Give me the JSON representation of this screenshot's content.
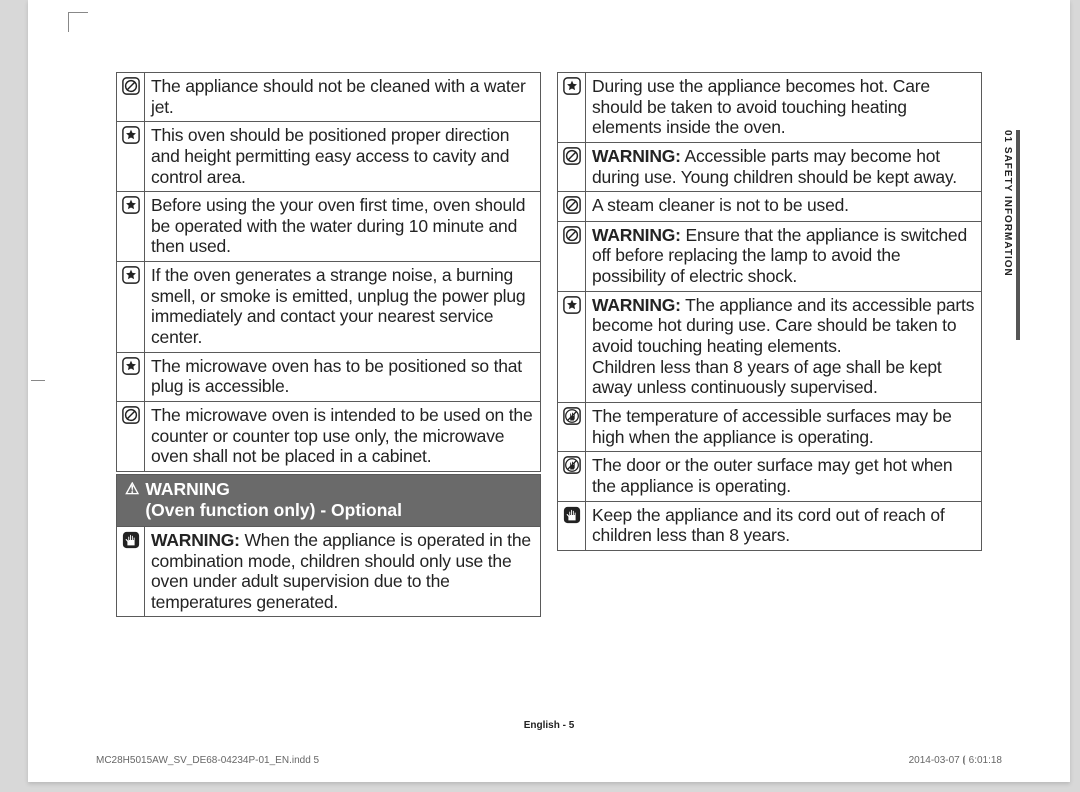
{
  "left_items": [
    {
      "icon": "prohibit",
      "text": "The appliance should not be cleaned with a water jet."
    },
    {
      "icon": "star",
      "text": "This oven should be positioned proper direction and height permitting easy access to cavity and control area."
    },
    {
      "icon": "star",
      "text": "Before using the your oven first time, oven should be operated with the water during 10 minute and then used."
    },
    {
      "icon": "star",
      "text": "If the oven generates a strange noise, a burning smell, or smoke is emitted, unplug the power plug immediately and contact your nearest service center."
    },
    {
      "icon": "star",
      "text": "The microwave oven has to be positioned so that plug is accessible."
    },
    {
      "icon": "prohibit",
      "text": "The microwave oven is intended to be used on the counter or counter top use only, the microwave oven shall not be placed in a cabinet."
    }
  ],
  "warning_header": {
    "line1": "WARNING",
    "line2": "(Oven function only) - Optional"
  },
  "warning_items": [
    {
      "icon": "hand",
      "bold": "WARNING:",
      "text": " When the appliance is operated in the combination mode, children should only use the oven under adult supervision due to the temperatures generated."
    }
  ],
  "right_items": [
    {
      "icon": "star",
      "text": "During use the appliance becomes hot. Care should be taken to avoid touching heating elements inside the oven."
    },
    {
      "icon": "prohibit",
      "bold": "WARNING:",
      "text": " Accessible parts may become hot during use. Young children should be kept away."
    },
    {
      "icon": "prohibit",
      "text": "A steam cleaner is not to be used."
    },
    {
      "icon": "prohibit",
      "bold": "WARNING:",
      "text": " Ensure that the appliance is switched off before replacing the lamp to avoid the possibility of electric shock."
    },
    {
      "icon": "star",
      "bold": "WARNING:",
      "text": " The appliance and its accessible parts become hot during use. Care should be taken to avoid touching heating elements.\nChildren less than 8 years of age shall be kept away unless continuously supervised."
    },
    {
      "icon": "notouch",
      "text": "The temperature of accessible surfaces may be high when the appliance is operating."
    },
    {
      "icon": "notouch",
      "text": "The door or the outer surface may get hot when the appliance is operating."
    },
    {
      "icon": "hand",
      "text": "Keep the appliance and its cord out of reach of children less than 8 years."
    }
  ],
  "side_tab": "01  SAFETY INFORMATION",
  "footer": {
    "center": "English - 5",
    "left": "MC28H5015AW_SV_DE68-04234P-01_EN.indd   5",
    "right": "2014-03-07   ⦗ 6:01:18"
  },
  "colors": {
    "page_bg": "#ffffff",
    "body_bg": "#d8d8d8",
    "border": "#5a5a5a",
    "header_bg": "#6a6a6a",
    "text": "#232323"
  }
}
